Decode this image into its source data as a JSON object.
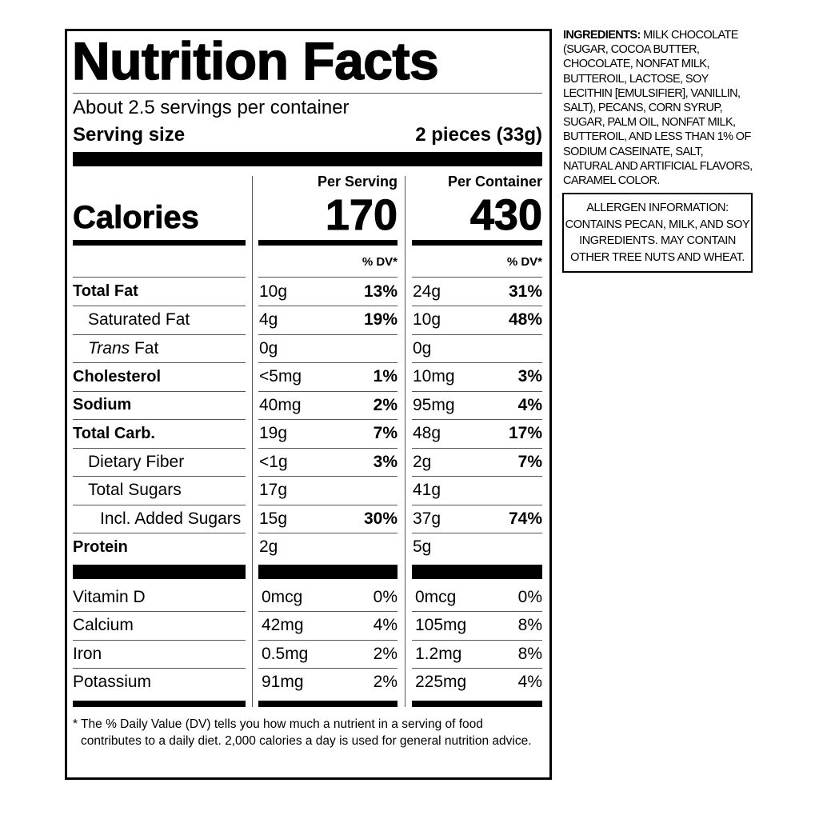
{
  "label": {
    "title": "Nutrition Facts",
    "servings": "About 2.5 servings per container",
    "serving_size_label": "Serving size",
    "serving_size": "2 pieces (33g)",
    "calories_label": "Calories",
    "columns": [
      "Per Serving",
      "Per Container"
    ],
    "calories": [
      "170",
      "430"
    ],
    "dv_header": "% DV*",
    "nutrients": [
      {
        "name": "Total Fat",
        "bold": true,
        "indent": 0,
        "cells": [
          [
            "10g",
            "13%"
          ],
          [
            "24g",
            "31%"
          ]
        ]
      },
      {
        "name": "Saturated Fat",
        "bold": false,
        "indent": 1,
        "cells": [
          [
            "4g",
            "19%"
          ],
          [
            "10g",
            "48%"
          ]
        ]
      },
      {
        "italic_prefix": "Trans",
        "name": "Fat",
        "bold": false,
        "indent": 1,
        "cells": [
          [
            "0g"
          ],
          [
            "0g"
          ]
        ]
      },
      {
        "name": "Cholesterol",
        "bold": true,
        "indent": 0,
        "cells": [
          [
            "<5mg",
            "1%"
          ],
          [
            "10mg",
            "3%"
          ]
        ]
      },
      {
        "name": "Sodium",
        "bold": true,
        "indent": 0,
        "cells": [
          [
            "40mg",
            "2%"
          ],
          [
            "95mg",
            "4%"
          ]
        ]
      },
      {
        "name": "Total Carb.",
        "bold": true,
        "indent": 0,
        "cells": [
          [
            "19g",
            "7%"
          ],
          [
            "48g",
            "17%"
          ]
        ]
      },
      {
        "name": "Dietary Fiber",
        "bold": false,
        "indent": 1,
        "cells": [
          [
            "<1g",
            "3%"
          ],
          [
            "2g",
            "7%"
          ]
        ]
      },
      {
        "name": "Total Sugars",
        "bold": false,
        "indent": 1,
        "cells": [
          [
            "17g"
          ],
          [
            "41g"
          ]
        ]
      },
      {
        "name": "Incl. Added Sugars",
        "bold": false,
        "indent": 2,
        "cells": [
          [
            "15g",
            "30%"
          ],
          [
            "37g",
            "74%"
          ]
        ]
      },
      {
        "name": "Protein",
        "bold": true,
        "indent": 0,
        "cells": [
          [
            "2g"
          ],
          [
            "5g"
          ]
        ]
      }
    ],
    "vitamins": [
      {
        "name": "Vitamin D",
        "cells": [
          [
            "0mcg",
            "0%"
          ],
          [
            "0mcg",
            "0%"
          ]
        ]
      },
      {
        "name": "Calcium",
        "cells": [
          [
            "42mg",
            "4%"
          ],
          [
            "105mg",
            "8%"
          ]
        ]
      },
      {
        "name": "Iron",
        "cells": [
          [
            "0.5mg",
            "2%"
          ],
          [
            "1.2mg",
            "8%"
          ]
        ]
      },
      {
        "name": "Potassium",
        "cells": [
          [
            "91mg",
            "2%"
          ],
          [
            "225mg",
            "4%"
          ]
        ]
      }
    ],
    "footnote": "* The % Daily Value (DV) tells you how much a nutrient in a serving of food contributes to a daily diet. 2,000 calories a day is used for general nutrition advice."
  },
  "ingredients": {
    "heading": "INGREDIENTS:",
    "text": "MILK CHOCOLATE (SUGAR, COCOA BUTTER, CHOCOLATE, NONFAT MILK, BUTTEROIL, LACTOSE, SOY LECITHIN [EMULSIFIER], VANILLIN, SALT), PECANS, CORN SYRUP, SUGAR, PALM OIL, NONFAT MILK, BUTTEROIL, AND LESS THAN 1% OF SODIUM CASEINATE, SALT, NATURAL AND ARTIFICIAL FLAVORS, CARAMEL COLOR."
  },
  "allergen": "ALLERGEN INFORMATION: CONTAINS PECAN, MILK, AND SOY INGREDIENTS. MAY CONTAIN OTHER TREE NUTS AND WHEAT."
}
